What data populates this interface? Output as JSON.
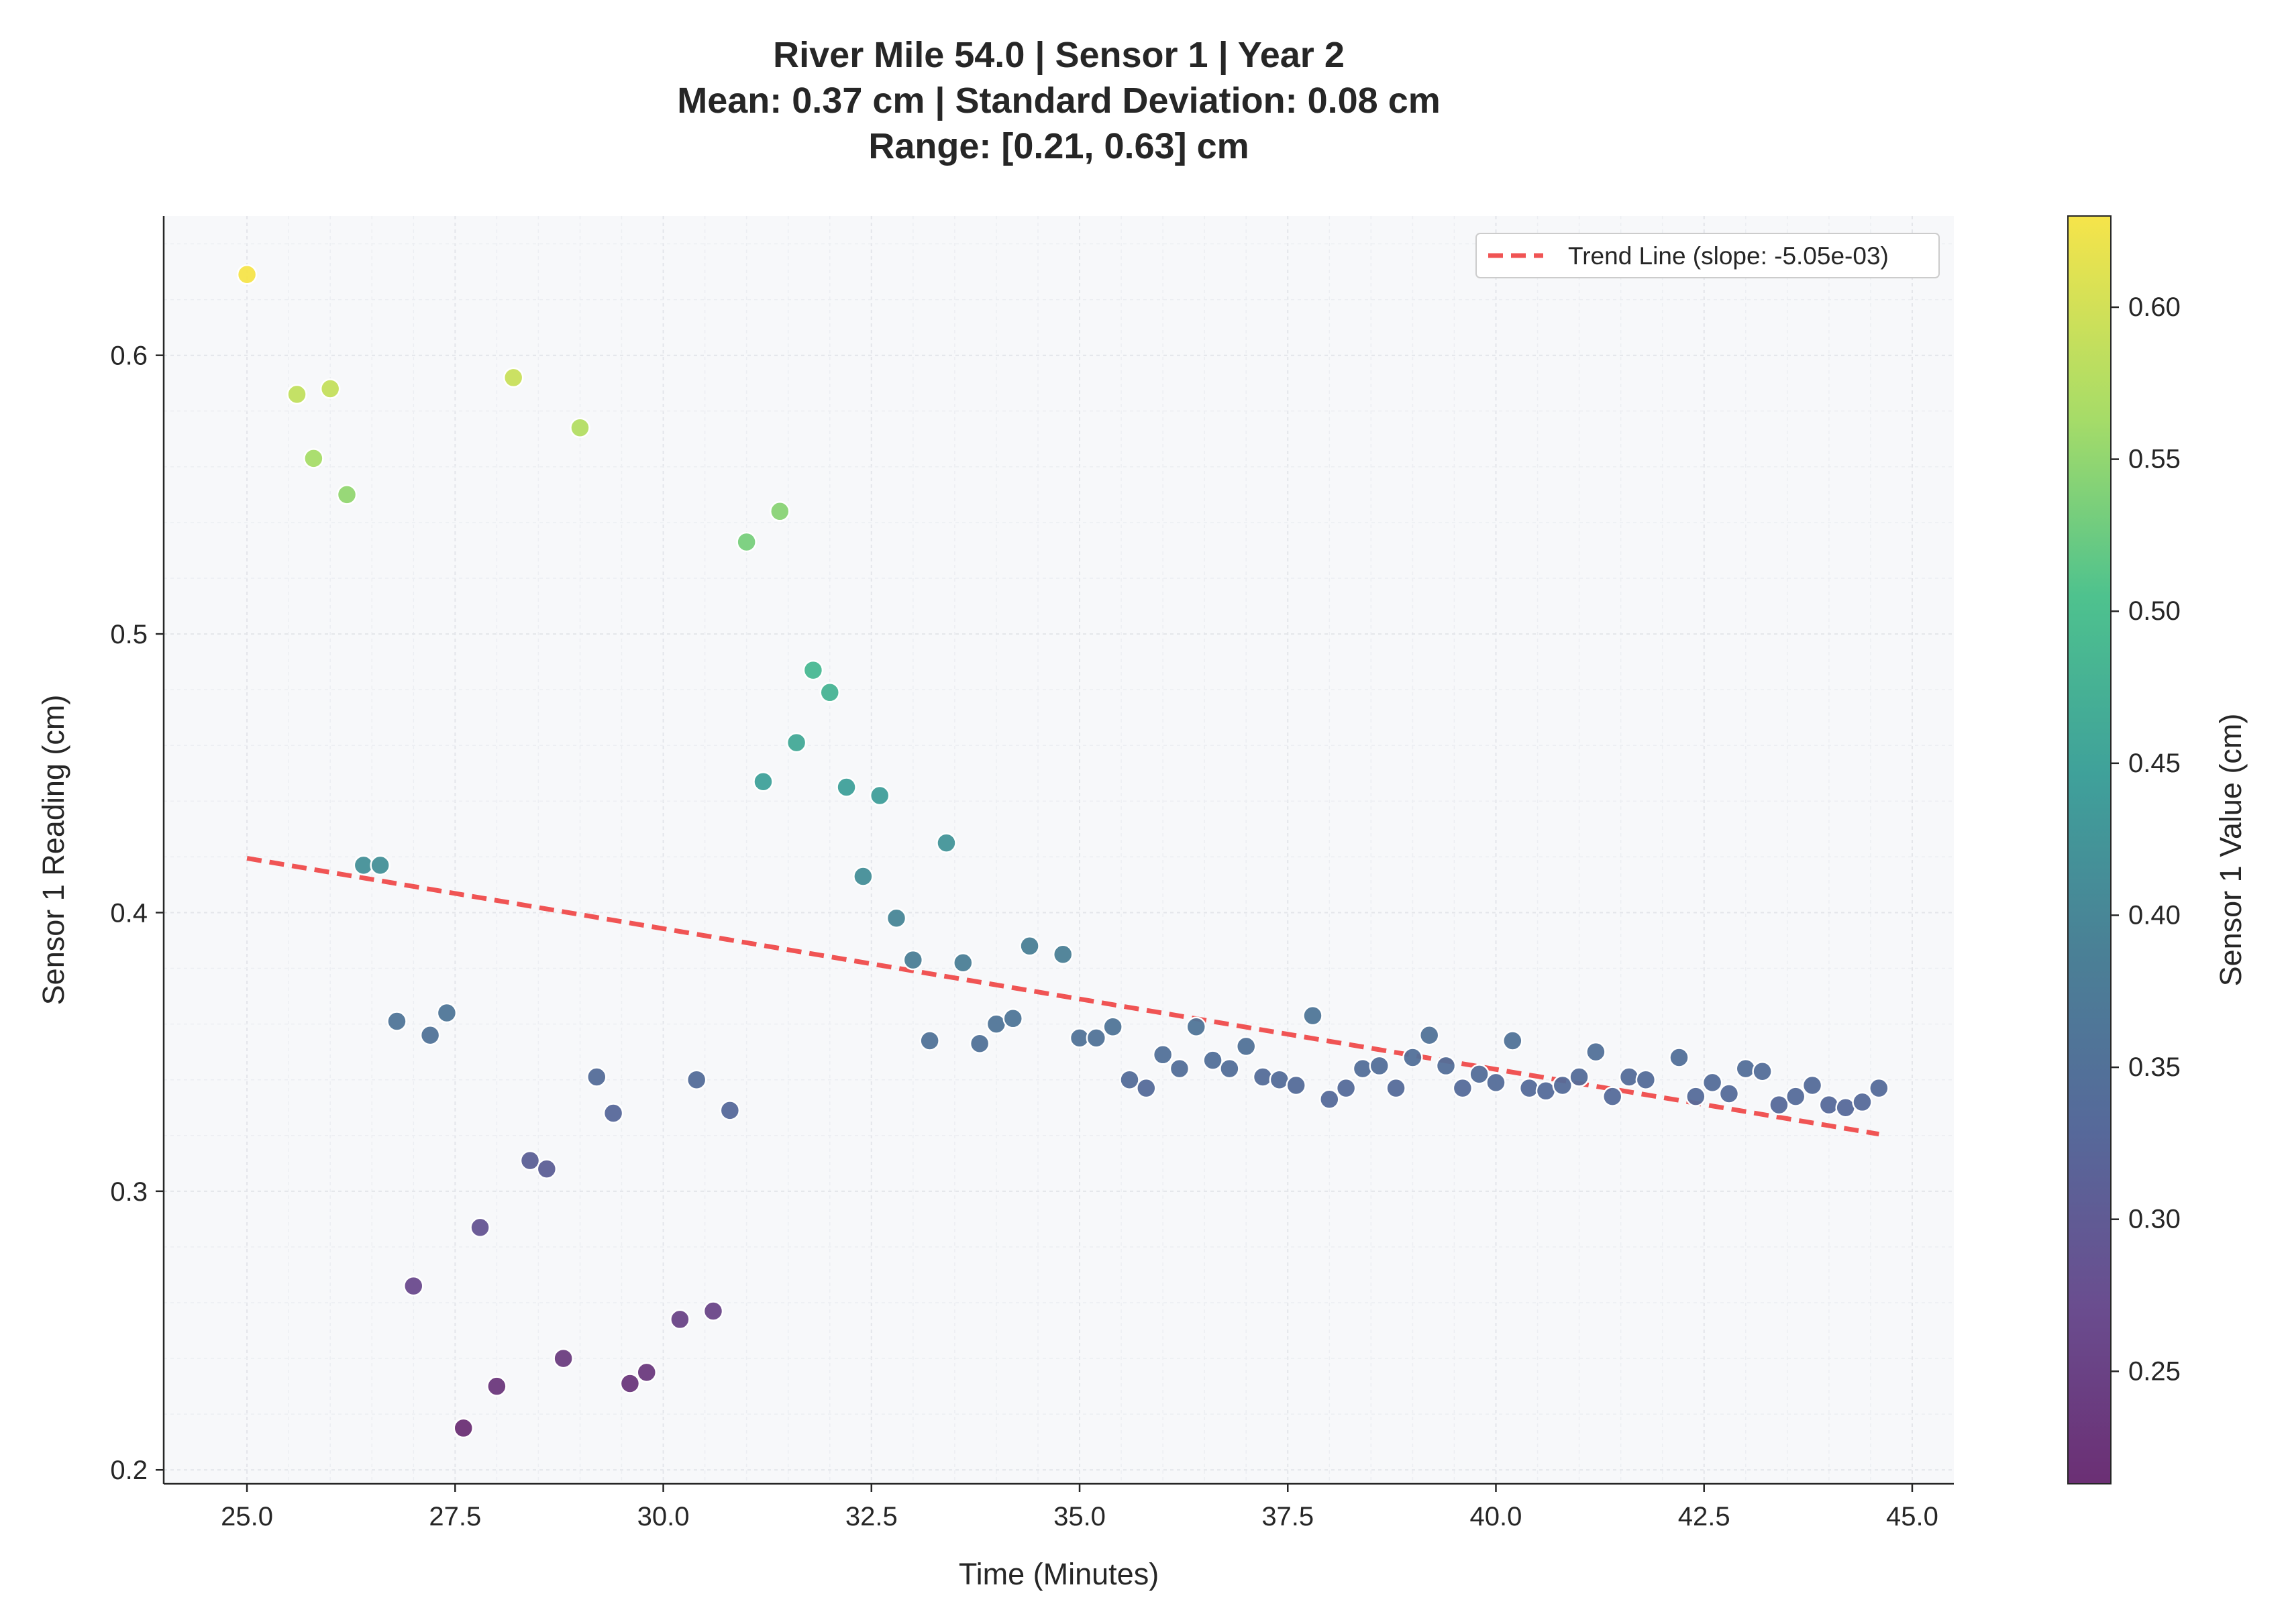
{
  "chart_data": {
    "type": "scatter",
    "title_lines": [
      "River Mile 54.0 | Sensor 1 | Year 2",
      "Mean: 0.37 cm | Standard Deviation: 0.08 cm",
      "Range: [0.21, 0.63] cm"
    ],
    "xlabel": "Time (Minutes)",
    "ylabel": "Sensor 1 Reading (cm)",
    "xlim": [
      24.0,
      45.5
    ],
    "ylim": [
      0.195,
      0.65
    ],
    "xticks": [
      25.0,
      27.5,
      30.0,
      32.5,
      35.0,
      37.5,
      40.0,
      42.5,
      45.0
    ],
    "xtick_labels": [
      "25.0",
      "27.5",
      "30.0",
      "32.5",
      "35.0",
      "37.5",
      "40.0",
      "42.5",
      "45.0"
    ],
    "yticks": [
      0.2,
      0.3,
      0.4,
      0.5,
      0.6
    ],
    "ytick_labels": [
      "0.2",
      "0.3",
      "0.4",
      "0.5",
      "0.6"
    ],
    "grid": true,
    "legend": {
      "placement": "top-right",
      "entries": [
        "Trend Line (slope: -5.05e-03)"
      ]
    },
    "colorbar": {
      "label": "Sensor 1 Value (cm)",
      "colormap": "viridis",
      "range": [
        0.213,
        0.63
      ],
      "ticks": [
        0.25,
        0.3,
        0.35,
        0.4,
        0.45,
        0.5,
        0.55,
        0.6
      ],
      "tick_labels": [
        "0.25",
        "0.30",
        "0.35",
        "0.40",
        "0.45",
        "0.50",
        "0.55",
        "0.60"
      ]
    },
    "series": [
      {
        "type": "scatter",
        "points": [
          [
            25.0,
            0.629
          ],
          [
            25.6,
            0.586
          ],
          [
            25.8,
            0.563
          ],
          [
            26.0,
            0.588
          ],
          [
            26.2,
            0.55
          ],
          [
            26.4,
            0.417
          ],
          [
            26.6,
            0.417
          ],
          [
            26.8,
            0.361
          ],
          [
            27.0,
            0.266
          ],
          [
            27.2,
            0.356
          ],
          [
            27.4,
            0.364
          ],
          [
            27.6,
            0.215
          ],
          [
            27.8,
            0.287
          ],
          [
            28.0,
            0.23
          ],
          [
            28.2,
            0.592
          ],
          [
            28.4,
            0.311
          ],
          [
            28.6,
            0.308
          ],
          [
            28.8,
            0.24
          ],
          [
            29.0,
            0.574
          ],
          [
            29.2,
            0.341
          ],
          [
            29.4,
            0.328
          ],
          [
            29.6,
            0.231
          ],
          [
            29.8,
            0.235
          ],
          [
            30.2,
            0.254
          ],
          [
            30.4,
            0.34
          ],
          [
            30.6,
            0.257
          ],
          [
            30.8,
            0.329
          ],
          [
            31.0,
            0.533
          ],
          [
            31.2,
            0.447
          ],
          [
            31.4,
            0.544
          ],
          [
            31.6,
            0.461
          ],
          [
            31.8,
            0.487
          ],
          [
            32.0,
            0.479
          ],
          [
            32.2,
            0.445
          ],
          [
            32.4,
            0.413
          ],
          [
            32.6,
            0.442
          ],
          [
            32.8,
            0.398
          ],
          [
            33.0,
            0.383
          ],
          [
            33.2,
            0.354
          ],
          [
            33.4,
            0.425
          ],
          [
            33.6,
            0.382
          ],
          [
            33.8,
            0.353
          ],
          [
            34.0,
            0.36
          ],
          [
            34.2,
            0.362
          ],
          [
            34.4,
            0.388
          ],
          [
            34.8,
            0.385
          ],
          [
            35.0,
            0.355
          ],
          [
            35.2,
            0.355
          ],
          [
            35.4,
            0.359
          ],
          [
            35.6,
            0.34
          ],
          [
            35.8,
            0.337
          ],
          [
            36.0,
            0.349
          ],
          [
            36.2,
            0.344
          ],
          [
            36.4,
            0.359
          ],
          [
            36.6,
            0.347
          ],
          [
            36.8,
            0.344
          ],
          [
            37.0,
            0.352
          ],
          [
            37.2,
            0.341
          ],
          [
            37.4,
            0.34
          ],
          [
            37.6,
            0.338
          ],
          [
            37.8,
            0.363
          ],
          [
            38.0,
            0.333
          ],
          [
            38.2,
            0.337
          ],
          [
            38.4,
            0.344
          ],
          [
            38.6,
            0.345
          ],
          [
            38.8,
            0.337
          ],
          [
            39.0,
            0.348
          ],
          [
            39.2,
            0.356
          ],
          [
            39.4,
            0.345
          ],
          [
            39.6,
            0.337
          ],
          [
            39.8,
            0.342
          ],
          [
            40.0,
            0.339
          ],
          [
            40.2,
            0.354
          ],
          [
            40.4,
            0.337
          ],
          [
            40.6,
            0.336
          ],
          [
            40.8,
            0.338
          ],
          [
            41.0,
            0.341
          ],
          [
            41.2,
            0.35
          ],
          [
            41.4,
            0.334
          ],
          [
            41.6,
            0.341
          ],
          [
            41.8,
            0.34
          ],
          [
            42.2,
            0.348
          ],
          [
            42.4,
            0.334
          ],
          [
            42.6,
            0.339
          ],
          [
            42.8,
            0.335
          ],
          [
            43.0,
            0.344
          ],
          [
            43.2,
            0.343
          ],
          [
            43.4,
            0.331
          ],
          [
            43.6,
            0.334
          ],
          [
            43.8,
            0.338
          ],
          [
            44.0,
            0.331
          ],
          [
            44.2,
            0.33
          ],
          [
            44.4,
            0.332
          ],
          [
            44.6,
            0.337
          ]
        ]
      },
      {
        "name": "Trend Line (slope: -5.05e-03)",
        "type": "line",
        "style": "dashed",
        "color": "#f05454",
        "x": [
          25.0,
          44.6
        ],
        "y": [
          0.4195,
          0.3205
        ]
      }
    ]
  }
}
